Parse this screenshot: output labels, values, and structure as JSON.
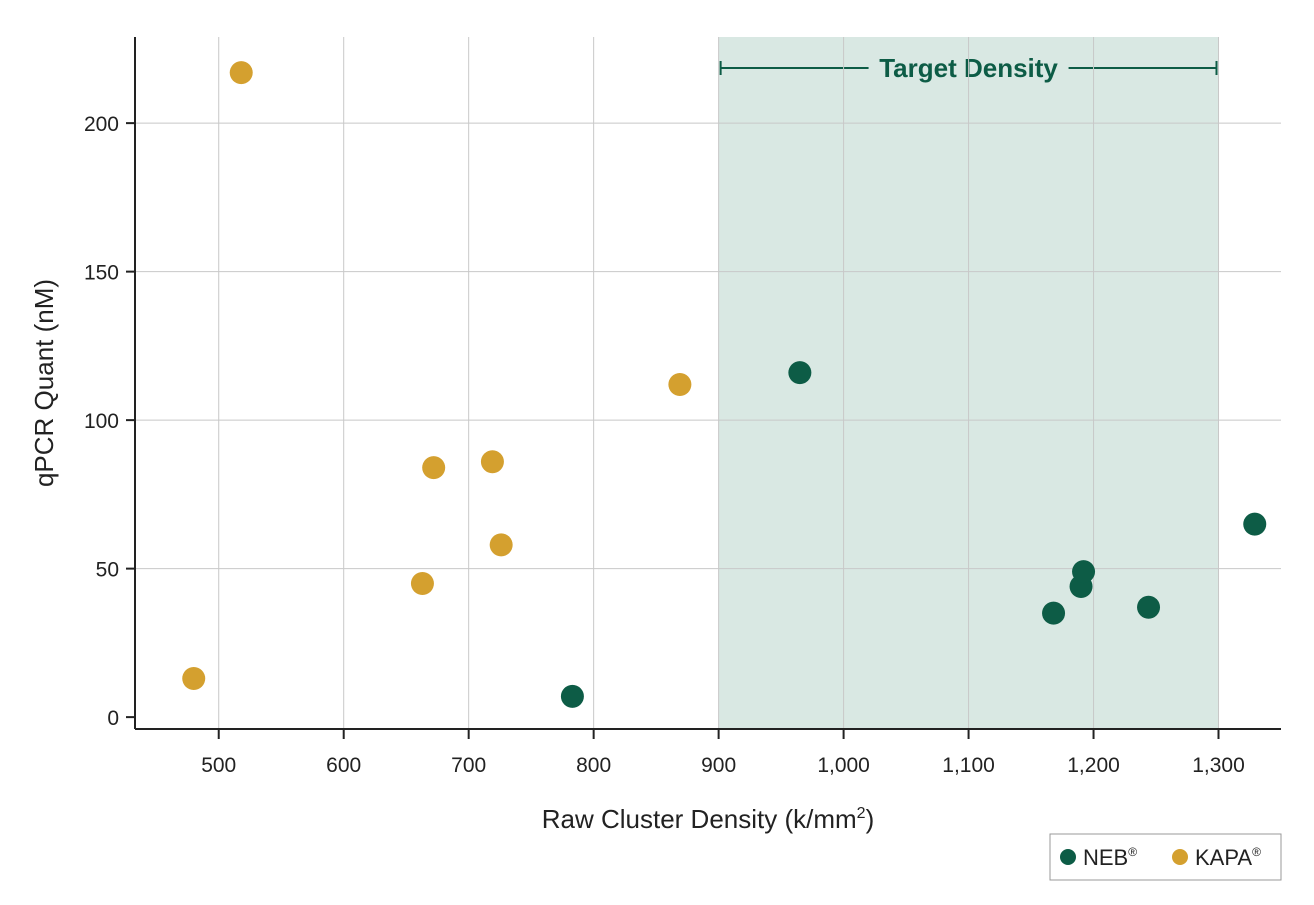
{
  "chart_data": {
    "type": "scatter",
    "xlabel": "Raw Cluster Density (k/mm",
    "xlabel_superscript": "2",
    "xlabel_suffix": ")",
    "ylabel": "qPCR Quant (nM)",
    "xlim": [
      433,
      1350
    ],
    "ylim": [
      -4,
      229
    ],
    "xticks": [
      500,
      600,
      700,
      800,
      900,
      1000,
      1100,
      1200,
      1300
    ],
    "xtick_labels": [
      "500",
      "600",
      "700",
      "800",
      "900",
      "1,000",
      "1,100",
      "1,200",
      "1,300"
    ],
    "yticks": [
      0,
      50,
      100,
      150,
      200
    ],
    "ytick_labels": [
      "0",
      "50",
      "100",
      "150",
      "200"
    ],
    "grid": true,
    "band": {
      "label": "Target Density",
      "x_start": 900,
      "x_end": 1300,
      "fill_color": "#d9e8e3",
      "label_color": "#0d5c46"
    },
    "legend_position": "bottom-right",
    "series": [
      {
        "name": "NEB",
        "mark": "®",
        "color": "#0d5c46",
        "points": [
          {
            "x": 783,
            "y": 7
          },
          {
            "x": 965,
            "y": 116
          },
          {
            "x": 1168,
            "y": 35
          },
          {
            "x": 1190,
            "y": 44
          },
          {
            "x": 1192,
            "y": 49
          },
          {
            "x": 1244,
            "y": 37
          },
          {
            "x": 1329,
            "y": 65
          }
        ]
      },
      {
        "name": "KAPA",
        "mark": "®",
        "color": "#d4a02f",
        "points": [
          {
            "x": 480,
            "y": 13
          },
          {
            "x": 518,
            "y": 217
          },
          {
            "x": 663,
            "y": 45
          },
          {
            "x": 672,
            "y": 84
          },
          {
            "x": 719,
            "y": 86
          },
          {
            "x": 726,
            "y": 58
          },
          {
            "x": 869,
            "y": 112
          }
        ]
      }
    ]
  }
}
